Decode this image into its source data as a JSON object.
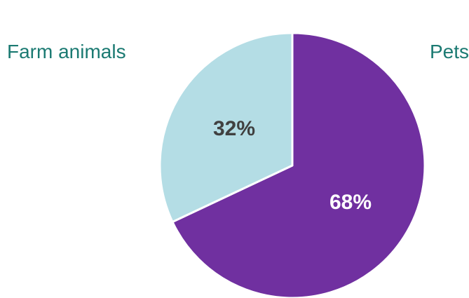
{
  "chart_data": {
    "type": "pie",
    "categories": [
      "Pets",
      "Farm animals"
    ],
    "values": [
      68,
      32
    ],
    "data_labels": [
      "68%",
      "32%"
    ],
    "colors": [
      "#7030a0",
      "#b4dde5"
    ],
    "label_colors": [
      "#ffffff",
      "#404040"
    ],
    "slice_border_color": "#ffffff",
    "start_angle_deg": 0,
    "direction": "clockwise",
    "legend": {
      "placement": "top",
      "text_color": "#1b7a72",
      "entries": [
        "Farm animals",
        "Pets"
      ]
    }
  }
}
